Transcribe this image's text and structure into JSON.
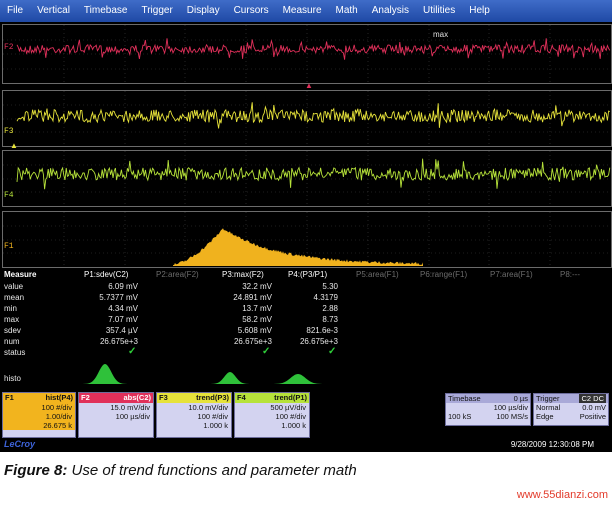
{
  "menu": [
    "File",
    "Vertical",
    "Timebase",
    "Trigger",
    "Display",
    "Cursors",
    "Measure",
    "Math",
    "Analysis",
    "Utilities",
    "Help"
  ],
  "traces": {
    "f2": {
      "label": "F2",
      "color": "#e0305a",
      "marker_text": "max"
    },
    "f3": {
      "label": "F3",
      "color": "#e6e23a"
    },
    "f4": {
      "label": "F4",
      "color": "#b6e23a"
    },
    "f1": {
      "label": "F1",
      "color": "#f0b21e"
    }
  },
  "measure": {
    "title": "Measure",
    "columns": [
      "P1:sdev(C2)",
      "P2:area(F2)",
      "P3:max(F2)",
      "P4:(P3/P1)",
      "P5:area(F1)",
      "P6:range(F1)",
      "P7:area(F1)",
      "P8:---"
    ],
    "row_labels": [
      "value",
      "mean",
      "min",
      "max",
      "sdev",
      "num",
      "status"
    ],
    "p1": [
      "6.09 mV",
      "5.7377 mV",
      "4.34 mV",
      "7.07 mV",
      "357.4 µV",
      "26.675e+3"
    ],
    "p3": [
      "32.2 mV",
      "24.891 mV",
      "13.7 mV",
      "58.2 mV",
      "5.608 mV",
      "26.675e+3"
    ],
    "p4": [
      "5.30",
      "4.3179",
      "2.88",
      "8.73",
      "821.6e-3",
      "26.675e+3"
    ],
    "histo_label": "histo"
  },
  "descriptors": {
    "f1": {
      "name": "F1",
      "func": "hist(P4)",
      "r1": "100 #/div",
      "r2": "1.00/div",
      "r3": "26.675 k",
      "color": "#f2b41e"
    },
    "f2": {
      "name": "F2",
      "func": "abs(C2)",
      "r1": "15.0 mV/div",
      "r2": "100 µs/div",
      "color": "#e0305a"
    },
    "f3": {
      "name": "F3",
      "func": "trend(P3)",
      "r1": "10.0 mV/div",
      "r2": "100 #/div",
      "r3": "1.000 k",
      "color": "#e6e23a"
    },
    "f4": {
      "name": "F4",
      "func": "trend(P1)",
      "r1": "500 µV/div",
      "r2": "100 #/div",
      "r3": "1.000 k",
      "color": "#b6e23a"
    }
  },
  "timebase": {
    "title": "Timebase",
    "delay": "0 µs",
    "r1": "100 µs/div",
    "r2l": "100 kS",
    "r2r": "100 MS/s"
  },
  "trigger": {
    "title": "Trigger",
    "chan": "C2",
    "coupling": "DC",
    "r1l": "Normal",
    "r1r": "0.0 mV",
    "r2l": "Edge",
    "r2r": "Positive"
  },
  "brand": "LeCroy",
  "datetime": "9/28/2009 12:30:08 PM",
  "caption": {
    "prefix": "Figure 8:",
    "text": "Use of trend functions and parameter math"
  },
  "watermark": "www.55dianzi.com"
}
